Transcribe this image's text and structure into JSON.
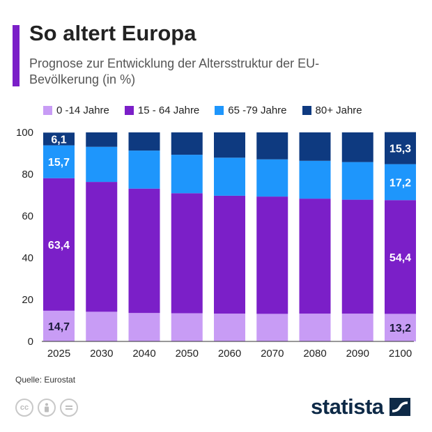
{
  "header": {
    "title": "So altert Europa",
    "subtitle": "Prognose zur Entwicklung der Altersstruktur der EU-Bevölkerung (in %)"
  },
  "chart_data": {
    "type": "bar",
    "stacked": true,
    "title": "So altert Europa",
    "subtitle": "Prognose zur Entwicklung der Altersstruktur der EU-Bevölkerung (in %)",
    "xlabel": "",
    "ylabel": "",
    "ylim": [
      0,
      100
    ],
    "yticks": [
      0,
      20,
      40,
      60,
      80,
      100
    ],
    "grid": false,
    "legend_position": "top",
    "categories": [
      "2025",
      "2030",
      "2040",
      "2050",
      "2060",
      "2070",
      "2080",
      "2090",
      "2100"
    ],
    "series": [
      {
        "name": "0 -14 Jahre",
        "color": "#c89cf5",
        "values": [
          14.7,
          14.2,
          13.6,
          13.5,
          13.3,
          13.2,
          13.3,
          13.3,
          13.2
        ]
      },
      {
        "name": "15 - 64 Jahre",
        "color": "#7b1fc8",
        "values": [
          63.4,
          62.1,
          59.5,
          57.4,
          56.4,
          56.1,
          55.0,
          54.5,
          54.4
        ]
      },
      {
        "name": "65 -79 Jahre",
        "color": "#1e96fc",
        "values": [
          15.7,
          16.8,
          18.2,
          18.4,
          18.2,
          17.8,
          18.1,
          18.0,
          17.2
        ]
      },
      {
        "name": "80+ Jahre",
        "color": "#0e3a80",
        "values": [
          6.1,
          6.9,
          8.7,
          10.7,
          12.1,
          12.9,
          13.6,
          14.2,
          15.3
        ]
      }
    ],
    "data_labels": [
      {
        "category": "2025",
        "series": 0,
        "text": "14,7"
      },
      {
        "category": "2025",
        "series": 1,
        "text": "63,4"
      },
      {
        "category": "2025",
        "series": 2,
        "text": "15,7"
      },
      {
        "category": "2025",
        "series": 3,
        "text": "6,1"
      },
      {
        "category": "2100",
        "series": 0,
        "text": "13,2"
      },
      {
        "category": "2100",
        "series": 1,
        "text": "54,4"
      },
      {
        "category": "2100",
        "series": 2,
        "text": "17,2"
      },
      {
        "category": "2100",
        "series": 3,
        "text": "15,3"
      }
    ]
  },
  "footer": {
    "source": "Quelle: Eurostat",
    "brand": "statista",
    "license_icons": [
      "cc-icon",
      "attribution-icon",
      "no-derivatives-icon"
    ]
  }
}
